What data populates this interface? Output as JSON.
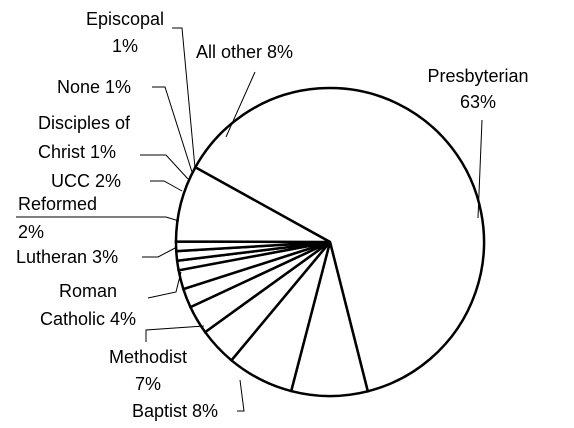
{
  "chart_data": {
    "type": "pie",
    "title": "",
    "start_angle_deg": 299,
    "direction": "clockwise",
    "slices": [
      {
        "name": "Presbyterian",
        "value": 63,
        "label": [
          "Presbyterian",
          "63%"
        ]
      },
      {
        "name": "Baptist",
        "value": 8,
        "label": [
          "Baptist 8%"
        ]
      },
      {
        "name": "Methodist",
        "value": 7,
        "label": [
          "Methodist",
          "7%"
        ]
      },
      {
        "name": "Roman Catholic",
        "value": 4,
        "label": [
          "Roman",
          "Catholic 4%"
        ]
      },
      {
        "name": "Lutheran",
        "value": 3,
        "label": [
          "Lutheran 3%"
        ]
      },
      {
        "name": "Reformed",
        "value": 2,
        "label": [
          "Reformed",
          "2%"
        ]
      },
      {
        "name": "UCC",
        "value": 2,
        "label": [
          "UCC 2%"
        ]
      },
      {
        "name": "Disciples of Christ",
        "value": 1,
        "label": [
          "Disciples of",
          "Christ 1%"
        ]
      },
      {
        "name": "None",
        "value": 1,
        "label": [
          "None 1%"
        ]
      },
      {
        "name": "Episcopal",
        "value": 1,
        "label": [
          "Episcopal",
          "1%"
        ]
      },
      {
        "name": "All other",
        "value": 8,
        "label": [
          "All other 8%"
        ]
      }
    ]
  }
}
